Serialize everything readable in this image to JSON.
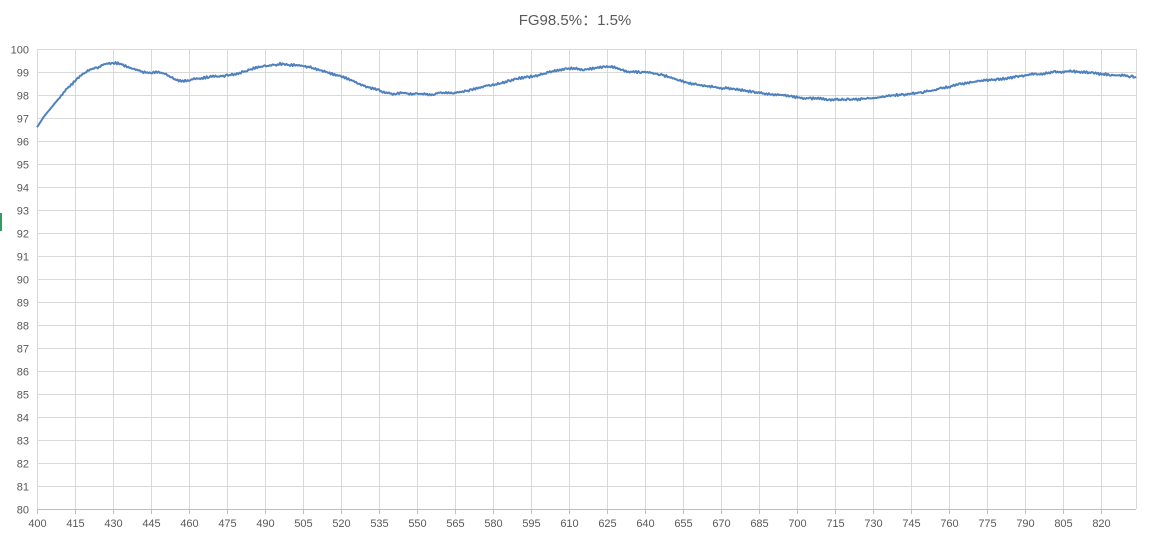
{
  "chart_data": {
    "type": "line",
    "title": "FG98.5%：1.5%",
    "xlabel": "",
    "ylabel": "",
    "xlim": [
      400,
      834
    ],
    "ylim": [
      80,
      100
    ],
    "x_ticks": [
      400,
      415,
      430,
      445,
      460,
      475,
      490,
      505,
      520,
      535,
      550,
      565,
      580,
      595,
      610,
      625,
      640,
      655,
      670,
      685,
      700,
      715,
      730,
      745,
      760,
      775,
      790,
      805,
      820
    ],
    "y_ticks": [
      80,
      81,
      82,
      83,
      84,
      85,
      86,
      87,
      88,
      89,
      90,
      91,
      92,
      93,
      94,
      95,
      96,
      97,
      98,
      99,
      100
    ],
    "grid": true,
    "legend": "none",
    "line_color": "#4f81bd",
    "series": [
      {
        "x": [
          400,
          403,
          406,
          409,
          412,
          415,
          418,
          421,
          424,
          427,
          430,
          433,
          436,
          439,
          442,
          445,
          448,
          451,
          454,
          457,
          460,
          463,
          466,
          469,
          472,
          475,
          478,
          481,
          484,
          487,
          490,
          493,
          496,
          499,
          502,
          505,
          508,
          511,
          514,
          517,
          520,
          523,
          526,
          529,
          532,
          535,
          538,
          541,
          544,
          547,
          550,
          553,
          556,
          559,
          562,
          565,
          568,
          571,
          574,
          577,
          580,
          583,
          586,
          589,
          592,
          595,
          598,
          601,
          604,
          607,
          610,
          613,
          616,
          619,
          622,
          625,
          628,
          631,
          634,
          637,
          640,
          643,
          646,
          649,
          652,
          655,
          658,
          661,
          664,
          667,
          670,
          673,
          676,
          679,
          682,
          685,
          688,
          691,
          694,
          697,
          700,
          703,
          706,
          709,
          712,
          715,
          718,
          721,
          724,
          727,
          730,
          733,
          736,
          739,
          742,
          745,
          748,
          751,
          754,
          757,
          760,
          763,
          766,
          769,
          772,
          775,
          778,
          781,
          784,
          787,
          790,
          793,
          796,
          799,
          802,
          805,
          808,
          811,
          814,
          817,
          820,
          823,
          826,
          829,
          832,
          834
        ],
        "values": [
          96.6,
          97.1,
          97.5,
          97.9,
          98.3,
          98.6,
          98.9,
          99.1,
          99.2,
          99.35,
          99.4,
          99.35,
          99.2,
          99.1,
          99.0,
          98.95,
          99.0,
          98.9,
          98.7,
          98.6,
          98.65,
          98.7,
          98.75,
          98.8,
          98.8,
          98.85,
          98.9,
          99.0,
          99.1,
          99.2,
          99.25,
          99.3,
          99.35,
          99.3,
          99.3,
          99.25,
          99.2,
          99.1,
          99.0,
          98.9,
          98.8,
          98.7,
          98.55,
          98.4,
          98.3,
          98.2,
          98.1,
          98.05,
          98.1,
          98.05,
          98.05,
          98.05,
          98.0,
          98.1,
          98.1,
          98.1,
          98.15,
          98.2,
          98.3,
          98.4,
          98.45,
          98.5,
          98.6,
          98.7,
          98.75,
          98.8,
          98.85,
          98.95,
          99.05,
          99.1,
          99.15,
          99.15,
          99.1,
          99.15,
          99.2,
          99.25,
          99.2,
          99.1,
          99.0,
          99.0,
          99.0,
          98.95,
          98.9,
          98.8,
          98.7,
          98.6,
          98.5,
          98.45,
          98.4,
          98.35,
          98.3,
          98.3,
          98.25,
          98.2,
          98.15,
          98.1,
          98.05,
          98.0,
          98.0,
          97.95,
          97.9,
          97.85,
          97.85,
          97.85,
          97.8,
          97.8,
          97.8,
          97.8,
          97.8,
          97.85,
          97.85,
          97.9,
          97.95,
          98.0,
          98.0,
          98.05,
          98.1,
          98.15,
          98.2,
          98.3,
          98.35,
          98.45,
          98.5,
          98.55,
          98.6,
          98.65,
          98.65,
          98.7,
          98.75,
          98.8,
          98.85,
          98.9,
          98.9,
          98.95,
          99.0,
          99.0,
          99.05,
          99.0,
          99.0,
          98.95,
          98.9,
          98.9,
          98.85,
          98.85,
          98.8,
          98.8
        ]
      }
    ]
  }
}
